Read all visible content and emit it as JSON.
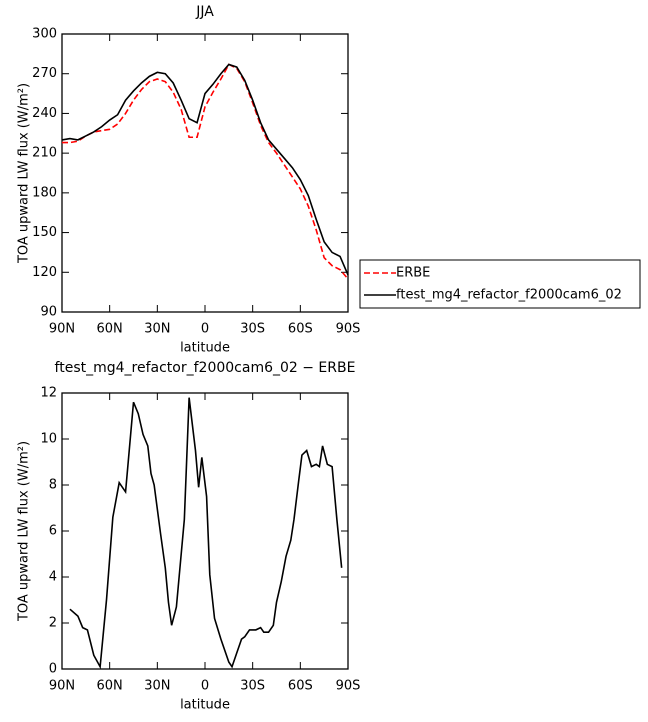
{
  "chart_data": [
    {
      "type": "line",
      "title": "JJA",
      "xlabel": "latitude",
      "ylabel": "TOA upward LW flux (W/m²)",
      "x": [
        90,
        85,
        80,
        75,
        70,
        65,
        60,
        55,
        50,
        45,
        40,
        35,
        30,
        25,
        20,
        15,
        10,
        5,
        0,
        -5,
        -10,
        -15,
        -20,
        -25,
        -30,
        -35,
        -40,
        -45,
        -50,
        -55,
        -60,
        -65,
        -70,
        -75,
        -80,
        -85,
        -90
      ],
      "xlim": [
        90,
        -90
      ],
      "xticks": [
        {
          "value": 90,
          "label": "90N"
        },
        {
          "value": 60,
          "label": "60N"
        },
        {
          "value": 30,
          "label": "30N"
        },
        0,
        {
          "value": -30,
          "label": "30S"
        },
        {
          "value": -60,
          "label": "60S"
        },
        {
          "value": -90,
          "label": "90S"
        }
      ],
      "ylim": [
        90,
        300
      ],
      "yticks": [
        90,
        120,
        150,
        180,
        210,
        240,
        270,
        300
      ],
      "legend": "right",
      "series": [
        {
          "name": "ERBE",
          "color": "#ff0000",
          "dashed": true,
          "values": [
            218,
            218,
            219,
            223,
            226,
            227,
            228,
            232,
            240,
            250,
            258,
            264,
            266,
            264,
            256,
            243,
            222,
            222,
            245,
            256,
            266,
            277,
            274,
            264,
            248,
            231,
            218,
            210,
            201,
            192,
            183,
            170,
            152,
            131,
            125,
            122,
            115
          ]
        },
        {
          "name": "ftest_mg4_refactor_f2000cam6_02",
          "color": "#000000",
          "dashed": false,
          "values": [
            220,
            221,
            220,
            223,
            226,
            230,
            235,
            239,
            250,
            257,
            263,
            268,
            271,
            270,
            263,
            250,
            236,
            233,
            255,
            262,
            270,
            277,
            275,
            265,
            250,
            233,
            220,
            213,
            206,
            199,
            190,
            178,
            160,
            143,
            135,
            132,
            118
          ]
        }
      ]
    },
    {
      "type": "line",
      "title": "ftest_mg4_refactor_f2000cam6_02 − ERBE",
      "xlabel": "latitude",
      "ylabel": "TOA upward LW flux (W/m²)",
      "x": [
        85,
        80,
        77,
        74,
        70,
        66,
        62,
        58,
        54,
        50,
        45,
        42,
        39,
        36,
        34,
        32,
        28,
        25,
        23,
        21,
        18,
        13,
        10,
        6,
        4,
        2,
        -1,
        -3,
        -6,
        -10,
        -15,
        -17,
        -20,
        -23,
        -25,
        -28,
        -32,
        -35,
        -37,
        -40,
        -43,
        -45,
        -48,
        -51,
        -54,
        -56,
        -59,
        -61,
        -64,
        -67,
        -70,
        -72,
        -74,
        -77,
        -80,
        -83,
        -86
      ],
      "values": [
        2.6,
        2.3,
        1.8,
        1.7,
        0.6,
        0.1,
        3,
        6.6,
        8.1,
        7.7,
        11.6,
        11.1,
        10.2,
        9.7,
        8.5,
        8,
        5.9,
        4.4,
        2.9,
        1.9,
        2.7,
        6.5,
        11.8,
        9.5,
        7.9,
        9.2,
        7.5,
        4.1,
        2.2,
        1.3,
        0.3,
        0.1,
        0.7,
        1.3,
        1.4,
        1.7,
        1.7,
        1.8,
        1.6,
        1.6,
        1.9,
        2.9,
        3.8,
        4.9,
        5.6,
        6.5,
        8.2,
        9.3,
        9.5,
        8.8,
        8.9,
        8.8,
        9.7,
        8.9,
        8.8,
        6.5,
        4.4
      ],
      "color": "#000000",
      "xlim": [
        90,
        -90
      ],
      "xticks": [
        {
          "value": 90,
          "label": "90N"
        },
        {
          "value": 60,
          "label": "60N"
        },
        {
          "value": 30,
          "label": "30N"
        },
        0,
        {
          "value": -30,
          "label": "30S"
        },
        {
          "value": -60,
          "label": "60S"
        },
        {
          "value": -90,
          "label": "90S"
        }
      ],
      "ylim": [
        0,
        12
      ],
      "yticks": [
        0,
        2,
        4,
        6,
        8,
        10,
        12
      ]
    }
  ]
}
